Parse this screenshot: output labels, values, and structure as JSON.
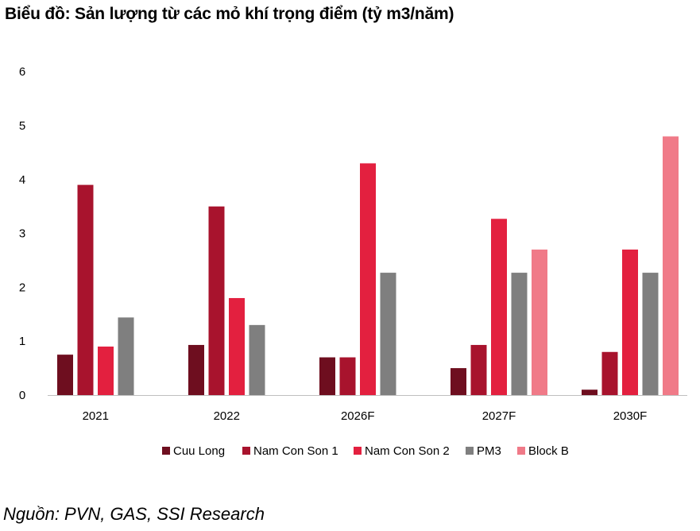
{
  "title": "Biểu đồ: Sản lượng từ các mỏ khí trọng điểm (tỷ m3/năm)",
  "source": "Nguồn: PVN, GAS, SSI Research",
  "colors": {
    "Cuu Long": "#6e0e1f",
    "Nam Con Son 1": "#a8132d",
    "Nam Con Son 2": "#e3203f",
    "PM3": "#7f7f7f",
    "Block B": "#f07a88"
  },
  "chart_data": {
    "type": "bar",
    "title": "Biểu đồ: Sản lượng từ các mỏ khí trọng điểm (tỷ m3/năm)",
    "categories": [
      "2021",
      "2022",
      "2026F",
      "2027F",
      "2030F"
    ],
    "series": [
      {
        "name": "Cuu Long",
        "values": [
          0.75,
          0.93,
          0.7,
          0.5,
          0.1
        ]
      },
      {
        "name": "Nam Con Son 1",
        "values": [
          3.9,
          3.5,
          0.7,
          0.93,
          0.8
        ]
      },
      {
        "name": "Nam Con Son 2",
        "values": [
          0.9,
          1.8,
          4.3,
          3.27,
          2.7
        ]
      },
      {
        "name": "PM3",
        "values": [
          1.44,
          1.3,
          2.27,
          2.27,
          2.27
        ]
      },
      {
        "name": "Block B",
        "values": [
          0,
          0,
          0,
          2.7,
          4.8
        ]
      }
    ],
    "yticks": [
      "0",
      "1",
      "2",
      "3",
      "4",
      "5",
      "6"
    ],
    "ylim": [
      0,
      6
    ],
    "grid": false,
    "legend_position": "bottom"
  }
}
